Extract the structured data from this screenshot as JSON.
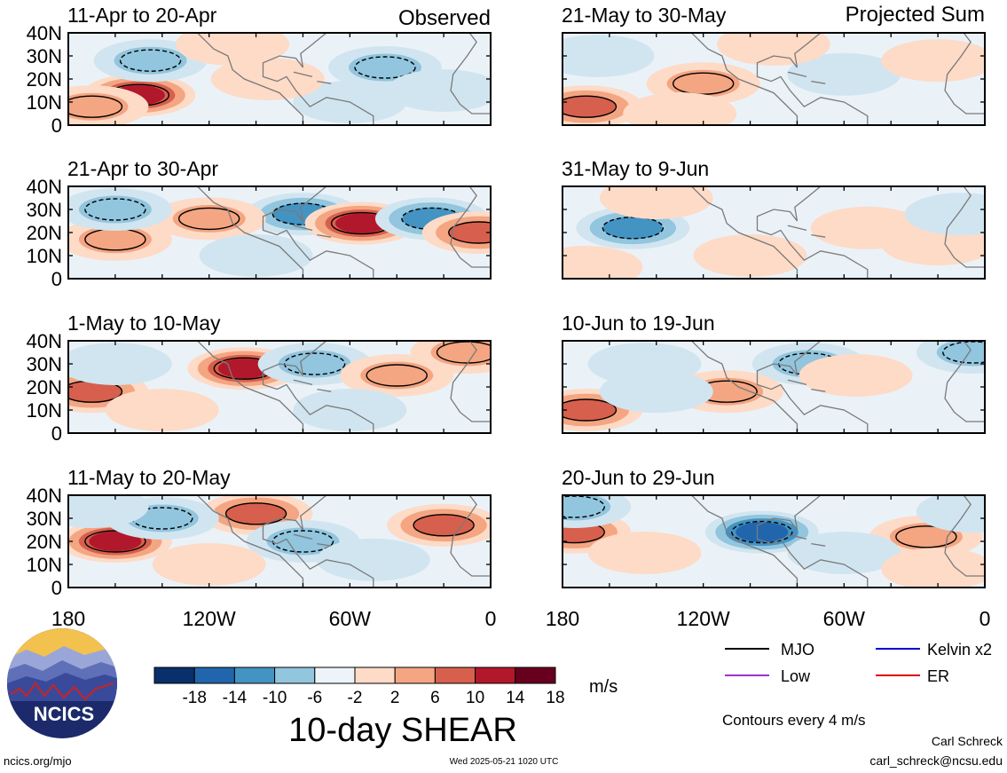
{
  "colors": {
    "neg": [
      "#08306b",
      "#2166ac",
      "#4393c3",
      "#92c5de",
      "#d1e5f0"
    ],
    "zero": "#f7f7f7",
    "pos": [
      "#fddbc7",
      "#f4a582",
      "#d6604d",
      "#b2182b",
      "#67001f"
    ],
    "land": "#7a7a7a",
    "contour": "#000000",
    "mjo": "#000000",
    "low": "#9933cc",
    "kelvin": "#0000cc",
    "er": "#dd0000",
    "logo_navy": "#1c2a6b",
    "logo_sun": "#f2c14e"
  },
  "labels": {
    "observed": "Observed",
    "projected": "Projected Sum",
    "units": "m/s",
    "title": "10-day SHEAR",
    "contours": "Contours every 4 m/s",
    "logo_text": "NCICS",
    "website": "ncics.org/mjo",
    "timestamp": "Wed 2025-05-21 1020 UTC",
    "author": "Carl Schreck",
    "email": "carl_schreck@ncsu.edu"
  },
  "legend": {
    "items": [
      {
        "name": "MJO",
        "color_key": "mjo"
      },
      {
        "name": "Kelvin x2",
        "color_key": "kelvin"
      },
      {
        "name": "Low",
        "color_key": "low"
      },
      {
        "name": "ER",
        "color_key": "er"
      }
    ]
  },
  "chart_data": {
    "type": "heatmap",
    "variable": "10-day SHEAR",
    "units": "m/s",
    "colorbar_ticks": [
      -18,
      -14,
      -10,
      -6,
      -2,
      2,
      6,
      10,
      14,
      18
    ],
    "x_tick_labels": [
      "180",
      "120W",
      "60W",
      "0"
    ],
    "xlim": [
      -180,
      0
    ],
    "ylim": [
      0,
      40
    ],
    "y_tick_labels": [
      "40N",
      "30N",
      "20N",
      "10N",
      "0"
    ],
    "panels": [
      {
        "period": "11-Apr to 20-Apr",
        "group": "Observed",
        "features": [
          {
            "lon": -150,
            "lat": 13,
            "value": 17
          },
          {
            "lon": -170,
            "lat": 8,
            "value": 8
          },
          {
            "lon": -145,
            "lat": 28,
            "value": -8
          },
          {
            "lon": -60,
            "lat": 10,
            "value": -4
          },
          {
            "lon": -45,
            "lat": 25,
            "value": -9
          },
          {
            "lon": -95,
            "lat": 20,
            "value": 4
          },
          {
            "lon": -110,
            "lat": 35,
            "value": 3
          },
          {
            "lon": -20,
            "lat": 15,
            "value": -3
          }
        ]
      },
      {
        "period": "21-Apr to 30-Apr",
        "group": "Observed",
        "features": [
          {
            "lon": -80,
            "lat": 28,
            "value": -13
          },
          {
            "lon": -55,
            "lat": 24,
            "value": 15
          },
          {
            "lon": -25,
            "lat": 26,
            "value": -10
          },
          {
            "lon": -5,
            "lat": 20,
            "value": 12
          },
          {
            "lon": -120,
            "lat": 26,
            "value": 8
          },
          {
            "lon": -160,
            "lat": 17,
            "value": 7
          },
          {
            "lon": -160,
            "lat": 30,
            "value": -6
          },
          {
            "lon": -100,
            "lat": 10,
            "value": -4
          }
        ]
      },
      {
        "period": "1-May to 10-May",
        "group": "Observed",
        "features": [
          {
            "lon": -105,
            "lat": 28,
            "value": 16
          },
          {
            "lon": -170,
            "lat": 18,
            "value": 13
          },
          {
            "lon": -160,
            "lat": 30,
            "value": -5
          },
          {
            "lon": -75,
            "lat": 30,
            "value": -8
          },
          {
            "lon": -40,
            "lat": 25,
            "value": 6
          },
          {
            "lon": -10,
            "lat": 35,
            "value": 8
          },
          {
            "lon": -140,
            "lat": 10,
            "value": 5
          },
          {
            "lon": -60,
            "lat": 10,
            "value": -3
          }
        ]
      },
      {
        "period": "11-May to 20-May",
        "group": "Observed",
        "features": [
          {
            "lon": -160,
            "lat": 20,
            "value": 14
          },
          {
            "lon": -100,
            "lat": 32,
            "value": 10
          },
          {
            "lon": -20,
            "lat": 27,
            "value": 10
          },
          {
            "lon": -140,
            "lat": 30,
            "value": -6
          },
          {
            "lon": -80,
            "lat": 20,
            "value": -6
          },
          {
            "lon": -170,
            "lat": 35,
            "value": -4
          },
          {
            "lon": -50,
            "lat": 12,
            "value": -3
          },
          {
            "lon": -120,
            "lat": 10,
            "value": 3
          }
        ]
      },
      {
        "period": "21-May to 30-May",
        "group": "Projected Sum",
        "features": [
          {
            "lon": -170,
            "lat": 8,
            "value": 12
          },
          {
            "lon": -120,
            "lat": 18,
            "value": 6
          },
          {
            "lon": -165,
            "lat": 30,
            "value": -4
          },
          {
            "lon": -60,
            "lat": 22,
            "value": -4
          },
          {
            "lon": -20,
            "lat": 28,
            "value": 4
          },
          {
            "lon": -90,
            "lat": 35,
            "value": 3
          },
          {
            "lon": -130,
            "lat": 5,
            "value": 5
          }
        ]
      },
      {
        "period": "31-May to 9-Jun",
        "group": "Projected Sum",
        "features": [
          {
            "lon": -150,
            "lat": 22,
            "value": -10
          },
          {
            "lon": -140,
            "lat": 35,
            "value": 4
          },
          {
            "lon": -50,
            "lat": 22,
            "value": 4
          },
          {
            "lon": -20,
            "lat": 15,
            "value": 5
          },
          {
            "lon": -10,
            "lat": 28,
            "value": -4
          },
          {
            "lon": -100,
            "lat": 10,
            "value": 3
          },
          {
            "lon": -170,
            "lat": 5,
            "value": 3
          }
        ]
      },
      {
        "period": "10-Jun to 19-Jun",
        "group": "Projected Sum",
        "features": [
          {
            "lon": -170,
            "lat": 10,
            "value": 10
          },
          {
            "lon": -145,
            "lat": 30,
            "value": -5
          },
          {
            "lon": -75,
            "lat": 30,
            "value": -6
          },
          {
            "lon": -5,
            "lat": 35,
            "value": -7
          },
          {
            "lon": -110,
            "lat": 18,
            "value": 6
          },
          {
            "lon": -55,
            "lat": 25,
            "value": 4
          },
          {
            "lon": -140,
            "lat": 18,
            "value": -4
          }
        ]
      },
      {
        "period": "20-Jun to 29-Jun",
        "group": "Projected Sum",
        "features": [
          {
            "lon": -95,
            "lat": 24,
            "value": -14
          },
          {
            "lon": -175,
            "lat": 24,
            "value": 13
          },
          {
            "lon": -175,
            "lat": 35,
            "value": -6
          },
          {
            "lon": -25,
            "lat": 22,
            "value": 6
          },
          {
            "lon": -145,
            "lat": 15,
            "value": 5
          },
          {
            "lon": -60,
            "lat": 15,
            "value": -4
          },
          {
            "lon": -20,
            "lat": 8,
            "value": 5
          },
          {
            "lon": -5,
            "lat": 33,
            "value": -4
          }
        ]
      }
    ]
  }
}
